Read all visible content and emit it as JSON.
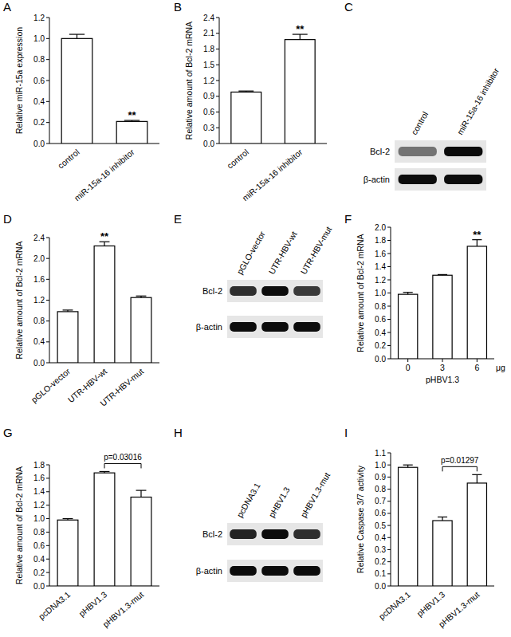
{
  "chart_data": [
    {
      "type": "bar",
      "title": "A",
      "y_label": "Relative miR-15a expression",
      "categories": [
        "control",
        "miR-15a-16 inhibitor"
      ],
      "values": [
        1.0,
        0.21
      ],
      "errors": [
        0.04,
        0.01
      ],
      "color": "#ffffff",
      "ylim": [
        0,
        1.2
      ],
      "yticks": [
        {
          "value": 0,
          "label": "0.0"
        },
        0.2,
        0.4,
        0.6,
        0.8,
        {
          "value": 1,
          "label": "1.0"
        },
        1.2
      ],
      "annotations": [
        {
          "text": "**",
          "category": 1
        }
      ]
    },
    {
      "type": "bar",
      "title": "B",
      "y_label": "Relative amount of Bcl-2 mRNA",
      "categories": [
        "control",
        "miR-15a-16 inhibitor"
      ],
      "values": [
        0.98,
        1.98
      ],
      "errors": [
        0.02,
        0.1
      ],
      "color": "#ffffff",
      "ylim": [
        0,
        2.4
      ],
      "yticks": [
        {
          "value": 0,
          "label": "0.0"
        },
        0.3,
        0.6,
        0.9,
        1.2,
        1.5,
        1.8,
        2.1,
        2.4
      ],
      "annotations": [
        {
          "text": "**",
          "category": 1
        }
      ]
    },
    {
      "type": "bar",
      "title": "D",
      "y_label": "Relative amount of Bcl-2 mRNA",
      "categories": [
        "pGLO-vector",
        "UTR-HBV-wt",
        "UTR-HBV-mut"
      ],
      "values": [
        0.98,
        2.24,
        1.25
      ],
      "errors": [
        0.03,
        0.08,
        0.03
      ],
      "color": "#ffffff",
      "ylim": [
        0,
        2.4
      ],
      "yticks": [
        {
          "value": 0,
          "label": "0.0"
        },
        0.4,
        0.8,
        1.2,
        1.6,
        {
          "value": 2,
          "label": "2.0"
        },
        2.4
      ],
      "annotations": [
        {
          "text": "**",
          "category": 1
        }
      ]
    },
    {
      "type": "bar",
      "title": "F",
      "y_label": "Relative amount of Bcl-2 mRNA",
      "x_label": "pHBV1.3",
      "x_unit": "μg",
      "categories": [
        "0",
        "3",
        "6"
      ],
      "values": [
        0.98,
        1.27,
        1.71
      ],
      "errors": [
        0.03,
        0.01,
        0.1
      ],
      "color": "#ffffff",
      "ylim": [
        0,
        2.0
      ],
      "yticks": [
        {
          "value": 0,
          "label": "0.0"
        },
        0.2,
        0.4,
        0.6,
        0.8,
        {
          "value": 1,
          "label": "1.0"
        },
        1.2,
        1.4,
        1.6,
        1.8,
        {
          "value": 2,
          "label": "2.0"
        }
      ],
      "annotations": [
        {
          "text": "**",
          "category": 2
        }
      ]
    },
    {
      "type": "bar",
      "title": "G",
      "y_label": "Relative amount of Bcl-2 mRNA",
      "categories": [
        "pcDNA3.1",
        "pHBV1.3",
        "pHBV1.3-mut"
      ],
      "values": [
        0.98,
        1.68,
        1.32
      ],
      "errors": [
        0.02,
        0.02,
        0.1
      ],
      "color": "#ffffff",
      "ylim": [
        0,
        1.8
      ],
      "yticks": [
        {
          "value": 0,
          "label": "0.0"
        },
        0.2,
        0.4,
        0.6,
        0.8,
        {
          "value": 1,
          "label": "1.0"
        },
        1.2,
        1.4,
        1.6,
        1.8
      ],
      "annotations": [
        {
          "text": "p=0.03016",
          "from": 1,
          "to": 2
        }
      ]
    },
    {
      "type": "bar",
      "title": "I",
      "y_label": "Relative Caspase 3/7 activity",
      "categories": [
        "pcDNA3.1",
        "pHBV1.3",
        "pHBV1.3-mut"
      ],
      "values": [
        0.98,
        0.54,
        0.85
      ],
      "errors": [
        0.02,
        0.03,
        0.07
      ],
      "color": "#ffffff",
      "ylim": [
        0,
        1.1
      ],
      "yticks": [
        {
          "value": 0,
          "label": "0.0"
        },
        0.1,
        0.2,
        0.3,
        0.4,
        0.5,
        0.6,
        0.7,
        0.8,
        0.9,
        {
          "value": 1,
          "label": "1.0"
        },
        1.1
      ],
      "annotations": [
        {
          "text": "p=0.01297",
          "from": 1,
          "to": 2
        }
      ]
    }
  ],
  "blots": [
    {
      "title": "C",
      "lanes": [
        "control",
        "miR-15a-16 inhibitor"
      ],
      "rows": [
        {
          "label": "Bcl-2",
          "bands": [
            0.5,
            0.95
          ]
        },
        {
          "label": "β-actin",
          "bands": [
            0.95,
            0.95
          ]
        }
      ]
    },
    {
      "title": "E",
      "lanes": [
        "pGLO-vector",
        "UTR-HBV-wt",
        "UTR-HBV-mut"
      ],
      "rows": [
        {
          "label": "Bcl-2",
          "bands": [
            0.8,
            0.95,
            0.75
          ]
        },
        {
          "label": "β-actin",
          "bands": [
            0.95,
            0.95,
            0.95
          ]
        }
      ]
    },
    {
      "title": "H",
      "lanes": [
        "pcDNA3.1",
        "pHBV1.3",
        "pHBV1.3-mut"
      ],
      "rows": [
        {
          "label": "Bcl-2",
          "bands": [
            0.85,
            0.95,
            0.8
          ]
        },
        {
          "label": "β-actin",
          "bands": [
            0.95,
            0.95,
            0.95
          ]
        }
      ]
    }
  ]
}
